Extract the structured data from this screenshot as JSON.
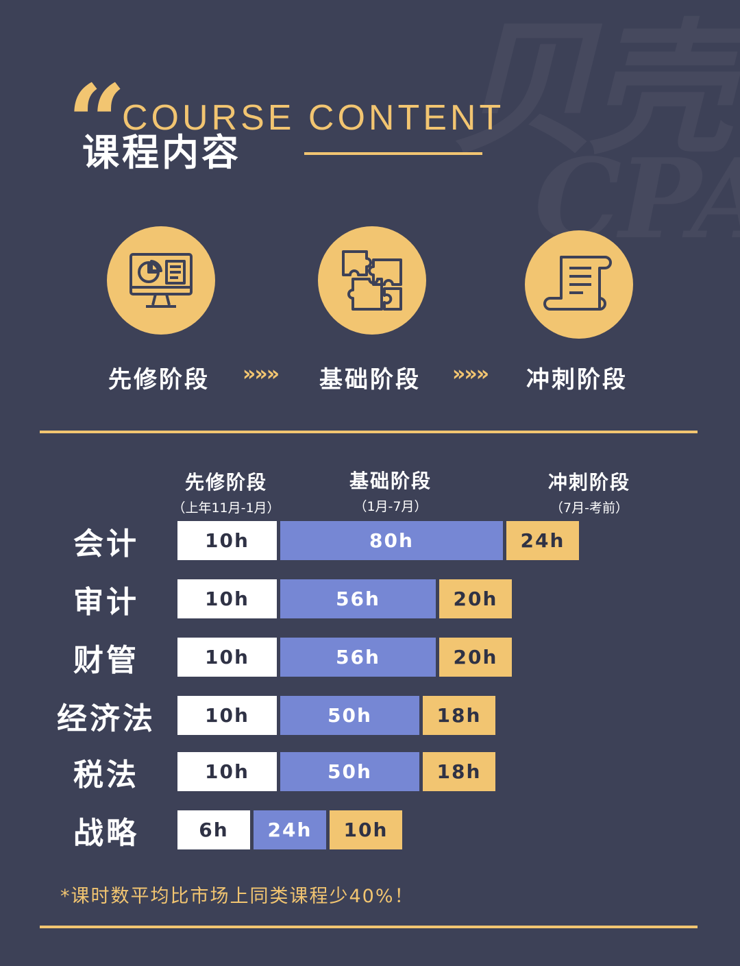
{
  "watermark": {
    "cn": "贝壳",
    "en": "CPA"
  },
  "header": {
    "quote_mark": "“",
    "title_en": "COURSE CONTENT",
    "title_cn": "课程内容"
  },
  "stages": [
    {
      "label": "先修阶段",
      "icon": "monitor-chart-icon"
    },
    {
      "label": "基础阶段",
      "icon": "puzzle-icon"
    },
    {
      "label": "冲刺阶段",
      "icon": "scroll-icon"
    }
  ],
  "stage_arrow": "»»»",
  "colors": {
    "background": "#3d4157",
    "accent": "#f2c571",
    "pre": "#ffffff",
    "base": "#7687d4",
    "sprint": "#f2c571"
  },
  "chart_data": {
    "type": "bar",
    "orientation": "horizontal-stacked",
    "column_headers": [
      {
        "title": "先修阶段",
        "sub": "（上年11月-1月）"
      },
      {
        "title": "基础阶段",
        "sub": "（1月-7月）"
      },
      {
        "title": "冲刺阶段",
        "sub": "（7月-考前）"
      }
    ],
    "categories": [
      "会计",
      "审计",
      "财管",
      "经济法",
      "税法",
      "战略"
    ],
    "series": [
      {
        "name": "先修阶段",
        "values": [
          10,
          10,
          10,
          10,
          10,
          6
        ],
        "labels": [
          "10h",
          "10h",
          "10h",
          "10h",
          "10h",
          "6h"
        ]
      },
      {
        "name": "基础阶段",
        "values": [
          80,
          56,
          56,
          50,
          50,
          24
        ],
        "labels": [
          "80h",
          "56h",
          "56h",
          "50h",
          "50h",
          "24h"
        ]
      },
      {
        "name": "冲刺阶段",
        "values": [
          24,
          20,
          20,
          18,
          18,
          10
        ],
        "labels": [
          "24h",
          "20h",
          "20h",
          "18h",
          "18h",
          "10h"
        ]
      }
    ]
  },
  "footnote": "*课时数平均比市场上同类课程少40%！"
}
